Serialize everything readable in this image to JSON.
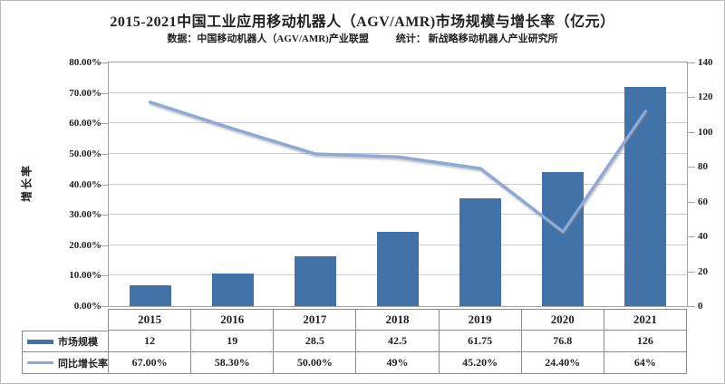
{
  "chart_data": {
    "type": "combo-bar-line",
    "title": "2015-2021中国工业应用移动机器人（AGV/AMR)市场规模与增长率（亿元）",
    "subtitle_source": "数据：中国移动机器人（AGV/AMR)产业联盟",
    "subtitle_stat": "统计： 新战略移动机器人产业研究所",
    "categories": [
      "2015",
      "2016",
      "2017",
      "2018",
      "2019",
      "2020",
      "2021"
    ],
    "series": [
      {
        "name": "市场规模",
        "type": "bar",
        "axis": "right",
        "values": [
          12,
          19,
          28.5,
          42.5,
          61.75,
          76.8,
          126
        ],
        "display": [
          "12",
          "19",
          "28.5",
          "42.5",
          "61.75",
          "76.8",
          "126"
        ]
      },
      {
        "name": "同比增长率",
        "type": "line",
        "axis": "left",
        "values": [
          67,
          58.3,
          50,
          49,
          45.2,
          24.4,
          64
        ],
        "display": [
          "67.00%",
          "58.30%",
          "50.00%",
          "49%",
          "45.20%",
          "24.40%",
          "64%"
        ]
      }
    ],
    "left_axis": {
      "title": "增长率",
      "min": 0,
      "max": 80,
      "step": 10,
      "labels": [
        "0.00%",
        "10.00%",
        "20.00%",
        "30.00%",
        "40.00%",
        "50.00%",
        "60.00%",
        "70.00%",
        "80.00%"
      ]
    },
    "right_axis": {
      "min": 0,
      "max": 140,
      "step": 20,
      "labels": [
        "0",
        "20",
        "40",
        "60",
        "80",
        "100",
        "120",
        "140"
      ]
    },
    "grid": true,
    "legend_position": "left-of-data-table"
  },
  "colors": {
    "bar": "#4173A9",
    "line": "#8FA9D6",
    "grid": "#C9C9C9",
    "axis": "#A3A3A3",
    "table_border": "#8C8C8C",
    "text": "#1F1F1F"
  }
}
